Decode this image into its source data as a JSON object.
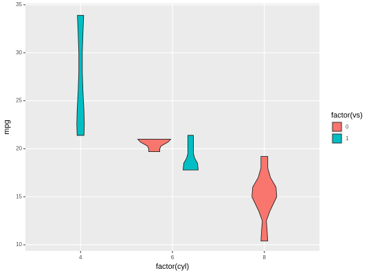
{
  "chart_data": {
    "type": "violin",
    "x_label": "factor(cyl)",
    "y_label": "mpg",
    "categories": [
      "4",
      "6",
      "8"
    ],
    "legend_title": "factor(vs)",
    "series": [
      {
        "name": "0",
        "color": "#F8766D"
      },
      {
        "name": "1",
        "color": "#00BFC4"
      }
    ],
    "violins": [
      {
        "category": 0,
        "series": 1,
        "y": [
          21.4,
          22.5,
          24,
          26,
          28,
          30,
          32,
          33.9
        ],
        "halfwidth": [
          0.037,
          0.041,
          0.037,
          0.026,
          0.019,
          0.019,
          0.026,
          0.034
        ]
      },
      {
        "category": 1,
        "series": 0,
        "y": [
          19.7,
          20,
          20.3,
          20.7,
          21.0
        ],
        "halfwidth": [
          0.06,
          0.06,
          0.075,
          0.15,
          0.179
        ]
      },
      {
        "category": 1,
        "series": 1,
        "y": [
          17.8,
          18.5,
          19,
          19.5,
          20.5,
          21.4
        ],
        "halfwidth": [
          0.082,
          0.075,
          0.045,
          0.03,
          0.03,
          0.03
        ]
      },
      {
        "category": 2,
        "series": 0,
        "y": [
          10.4,
          11.5,
          12.5,
          13.5,
          15,
          16,
          17,
          18,
          19.2
        ],
        "halfwidth": [
          0.037,
          0.03,
          0.022,
          0.06,
          0.135,
          0.127,
          0.067,
          0.037,
          0.037
        ]
      }
    ],
    "ylim": [
      9.36,
      35.14
    ],
    "yticks": [
      10,
      15,
      20,
      25,
      30,
      35
    ],
    "grid": true
  }
}
